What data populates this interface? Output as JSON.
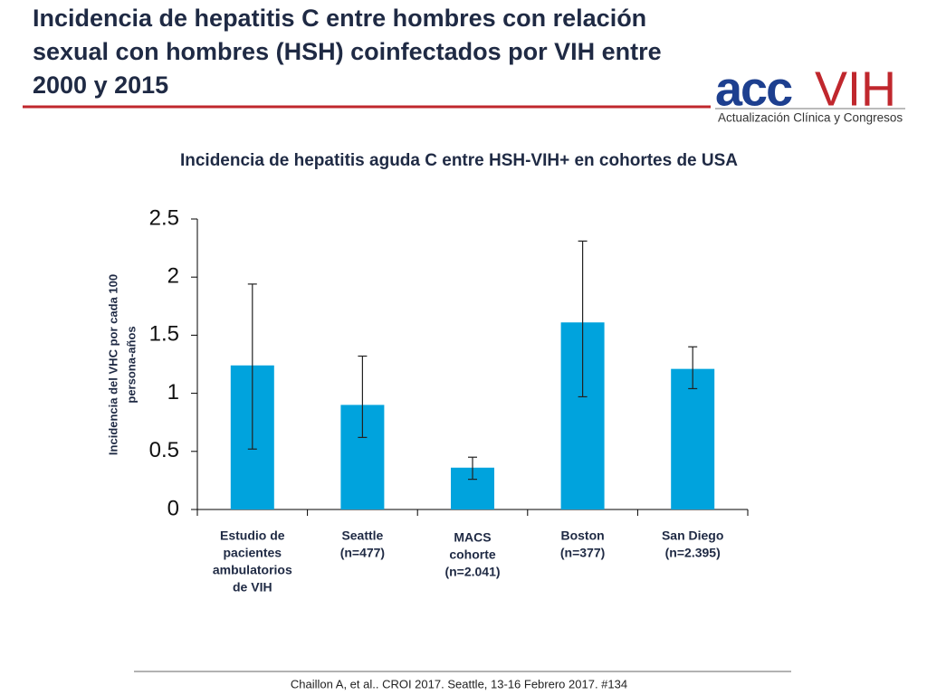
{
  "slide": {
    "title": [
      "Incidencia de hepatitis C entre hombres con relación",
      "sexual con hombres (HSH) coinfectados por VIH entre",
      "2000 y 2015"
    ],
    "logo": {
      "left": "acc",
      "right": "VIH",
      "tagline": "Actualización Clínica y Congresos"
    },
    "footer": "Chaillon A, et al.. CROI 2017. Seattle, 13-16 Febrero 2017. #134"
  },
  "chart_data": {
    "type": "bar",
    "title": "Incidencia de hepatitis aguda C entre HSH-VIH+ en cohortes de USA",
    "y_label": [
      "Incidencia del VHC por cada 100",
      "persona-años"
    ],
    "categories": [
      [
        "Estudio de",
        "pacientes",
        "ambulatorios",
        "de VIH"
      ],
      [
        "Seattle",
        "(n=477)"
      ],
      [
        "MACS",
        "cohorte",
        "(n=2.041)"
      ],
      [
        "Boston",
        "(n=377)"
      ],
      [
        "San Diego",
        "(n=2.395)"
      ]
    ],
    "values": [
      1.24,
      0.9,
      0.36,
      1.61,
      1.21
    ],
    "error_low": [
      0.52,
      0.62,
      0.26,
      0.97,
      1.04
    ],
    "error_high": [
      1.94,
      1.32,
      0.45,
      2.31,
      1.4
    ],
    "color": "#00a3dd",
    "ylim": [
      0,
      2.5
    ],
    "yticks": [
      0,
      0.5,
      1,
      1.5,
      2,
      2.5
    ],
    "grid": false
  }
}
